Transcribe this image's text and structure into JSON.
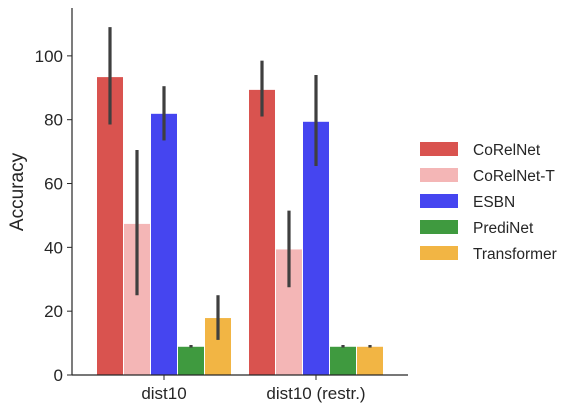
{
  "chart_data": {
    "type": "bar",
    "title": "",
    "xlabel": "",
    "ylabel": "Accuracy",
    "ylim": [
      0,
      115
    ],
    "yticks": [
      0,
      20,
      40,
      60,
      80,
      100
    ],
    "categories": [
      "dist10",
      "dist10 (restr.)"
    ],
    "series": [
      {
        "name": "CoRelNet",
        "color": "#d9534f",
        "values": [
          93.5,
          89.5
        ],
        "err_low": [
          78.5,
          81
        ],
        "err_high": [
          109,
          98.5
        ]
      },
      {
        "name": "CoRelNet-T",
        "color": "#f4b6b6",
        "values": [
          47.5,
          39.5
        ],
        "err_low": [
          25,
          27.5
        ],
        "err_high": [
          70.5,
          51.5
        ]
      },
      {
        "name": "ESBN",
        "color": "#4545f0",
        "values": [
          82,
          79.5
        ],
        "err_low": [
          73.5,
          65.5
        ],
        "err_high": [
          90.5,
          94
        ]
      },
      {
        "name": "PrediNet",
        "color": "#3f9a3f",
        "values": [
          9,
          9
        ],
        "err_low": [
          8.6,
          8.6
        ],
        "err_high": [
          9.4,
          9.4
        ]
      },
      {
        "name": "Transformer",
        "color": "#f2b544",
        "values": [
          18,
          9
        ],
        "err_low": [
          11,
          8.6
        ],
        "err_high": [
          25,
          9.4
        ]
      }
    ],
    "grid": false,
    "legend_position": "right"
  }
}
